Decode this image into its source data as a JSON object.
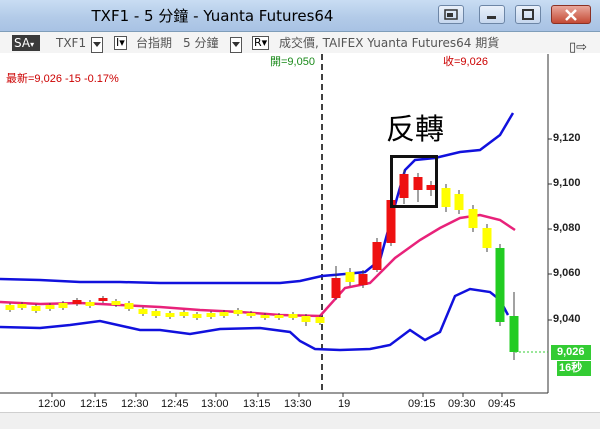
{
  "window": {
    "title": "TXF1 - 5 分鐘 - Yuanta Futures64"
  },
  "toolbar": {
    "sa_label": "SA",
    "symbol": "TXF1",
    "dropdown_mark": "I▾",
    "instrument_name": "台指期",
    "interval": "5 分鐘",
    "r_mark": "R▾",
    "source_text": "成交價, TAIFEX  Yuanta Futures64  期貨"
  },
  "quote": {
    "last_label": "最新=9,026  -15  -0.17%",
    "open_label": "開=9,050",
    "close_label": "收=9,026"
  },
  "annotation": {
    "text": "反轉"
  },
  "price_axis": {
    "ticks": [
      "9,120",
      "9,100",
      "9,080",
      "9,060",
      "9,040"
    ],
    "current_price_tag": "9,026",
    "countdown_tag": "16秒"
  },
  "time_axis": {
    "ticks": [
      "12:00",
      "12:15",
      "12:30",
      "12:45",
      "13:00",
      "13:15",
      "13:30",
      "19",
      "09:15",
      "09:30",
      "09:45"
    ]
  },
  "colors": {
    "up_candle": "#ee1111",
    "down_candle": "#ffff00",
    "down_candle_alt": "#22cc22",
    "bollinger_band": "#1111dd",
    "moving_average": "#e8227a",
    "session_divider": "#000000"
  }
}
